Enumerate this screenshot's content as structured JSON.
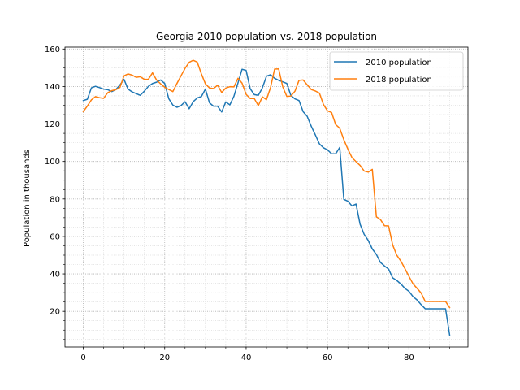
{
  "chart_data": {
    "type": "line",
    "title": "Georgia 2010 population vs. 2018 population",
    "xlabel": "",
    "ylabel": "Population in thousands",
    "xlim": [
      -4.5,
      94.5
    ],
    "ylim": [
      1,
      161
    ],
    "xticks": [
      0,
      20,
      40,
      60,
      80
    ],
    "yticks": [
      20,
      40,
      60,
      80,
      100,
      120,
      140,
      160
    ],
    "grid": true,
    "legend_position": "top-right",
    "x": [
      0,
      1,
      2,
      3,
      4,
      5,
      6,
      7,
      8,
      9,
      10,
      11,
      12,
      13,
      14,
      15,
      16,
      17,
      18,
      19,
      20,
      21,
      22,
      23,
      24,
      25,
      26,
      27,
      28,
      29,
      30,
      31,
      32,
      33,
      34,
      35,
      36,
      37,
      38,
      39,
      40,
      41,
      42,
      43,
      44,
      45,
      46,
      47,
      48,
      49,
      50,
      51,
      52,
      53,
      54,
      55,
      56,
      57,
      58,
      59,
      60,
      61,
      62,
      63,
      64,
      65,
      66,
      67,
      68,
      69,
      70,
      71,
      72,
      73,
      74,
      75,
      76,
      77,
      78,
      79,
      80,
      81,
      82,
      83,
      84,
      85,
      86,
      87,
      88,
      89,
      90
    ],
    "series": [
      {
        "name": "2010 population",
        "color": "#1f77b4",
        "values": [
          132.5,
          133.2,
          139.3,
          140.1,
          139.4,
          138.6,
          138.3,
          137.3,
          138.4,
          140.8,
          143.8,
          138.6,
          137.1,
          136.2,
          135.3,
          137.5,
          140.1,
          141.6,
          142.3,
          143.5,
          141.6,
          133.5,
          130.1,
          128.9,
          129.8,
          131.9,
          128.1,
          131.9,
          133.9,
          134.6,
          138.6,
          131.3,
          129.5,
          129.5,
          126.4,
          131.8,
          130.2,
          134.8,
          141.9,
          149.2,
          148.6,
          138.8,
          135.7,
          135.3,
          139.3,
          145.5,
          146.3,
          144.4,
          143.3,
          142.5,
          141.6,
          135.2,
          133.4,
          132.5,
          126.6,
          124.1,
          118.8,
          114.2,
          109.4,
          107.3,
          106.2,
          104.1,
          104.1,
          107.5,
          79.8,
          78.8,
          76.3,
          77.3,
          66.5,
          61.1,
          57.9,
          53.3,
          50.4,
          46.1,
          44.2,
          42.6,
          37.9,
          36.5,
          34.7,
          32.3,
          30.7,
          27.9,
          26.1,
          23.6,
          21.4,
          21.4,
          21.4,
          21.4,
          21.4,
          21.4,
          7.4
        ]
      },
      {
        "name": "2018 population",
        "color": "#ff7f0e",
        "values": [
          126.6,
          129.6,
          132.9,
          134.6,
          134.0,
          133.7,
          136.7,
          137.8,
          138.3,
          139.5,
          145.7,
          146.7,
          146.1,
          144.9,
          145.2,
          143.8,
          143.9,
          147.3,
          143.5,
          141.4,
          139.6,
          138.4,
          137.3,
          141.6,
          145.7,
          149.7,
          152.9,
          154.0,
          153.0,
          146.8,
          141.4,
          139.2,
          138.9,
          140.7,
          136.8,
          139.2,
          139.9,
          139.8,
          144.4,
          141.8,
          135.8,
          133.6,
          133.6,
          129.8,
          134.5,
          133.0,
          139.5,
          149.3,
          149.4,
          139.8,
          134.7,
          134.9,
          137.5,
          143.3,
          143.5,
          140.9,
          138.4,
          137.6,
          136.5,
          130.4,
          127.0,
          126.1,
          119.7,
          117.7,
          111.6,
          106.6,
          102.1,
          99.9,
          97.9,
          94.9,
          94.3,
          95.8,
          70.5,
          69.0,
          65.7,
          65.6,
          55.5,
          50.0,
          46.9,
          42.9,
          38.7,
          34.7,
          32.3,
          29.8,
          25.3,
          25.3,
          25.3,
          25.3,
          25.3,
          25.3,
          22.0
        ]
      }
    ]
  }
}
